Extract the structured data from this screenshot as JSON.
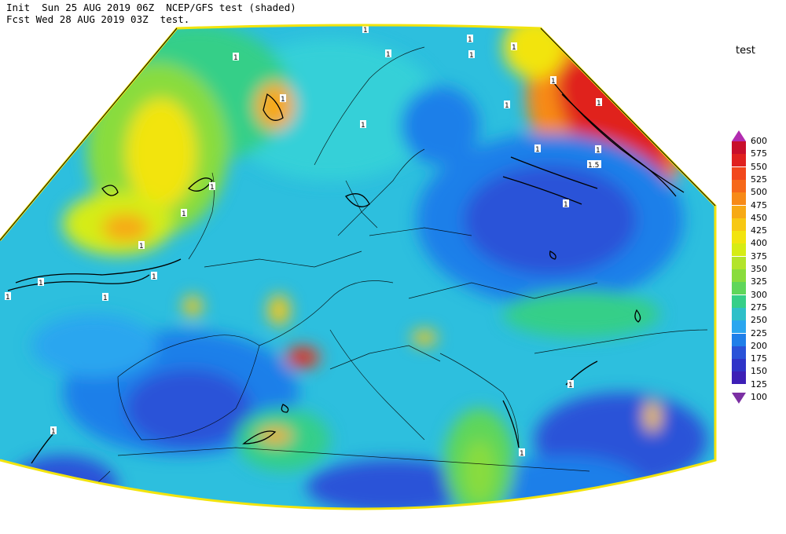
{
  "header": {
    "line1": "Init  Sun 25 AUG 2019 06Z  NCEP/GFS test (shaded)",
    "line2": "Fcst Wed 28 AUG 2019 03Z  test."
  },
  "legend": {
    "title": "test",
    "ticks": [
      "600",
      "575",
      "550",
      "525",
      "500",
      "475",
      "450",
      "425",
      "400",
      "375",
      "350",
      "325",
      "300",
      "275",
      "250",
      "225",
      "200",
      "175",
      "150",
      "125",
      "100"
    ],
    "colors": [
      "#b52a7a",
      "#c80f2c",
      "#e0211f",
      "#f2471c",
      "#f6681a",
      "#f78a17",
      "#f7a915",
      "#f7c813",
      "#f2e40e",
      "#d6ec14",
      "#b3e42a",
      "#89dc3c",
      "#5fd65a",
      "#35cf88",
      "#2dc0c9",
      "#2aa6ef",
      "#1f7fe9",
      "#2a52d8",
      "#2f34c8",
      "#3d1fb6",
      "#6f1fa7"
    ]
  },
  "map": {
    "background": "#22aedd",
    "contour_labels": [
      "1",
      "1",
      "1",
      "1",
      "1",
      "1",
      "1",
      "1",
      "1.5",
      "1",
      "1",
      "1",
      "1",
      "1",
      "1",
      "1",
      "1",
      "1",
      "1",
      "1",
      "1",
      "1",
      "1",
      "1",
      "1",
      "1"
    ]
  }
}
